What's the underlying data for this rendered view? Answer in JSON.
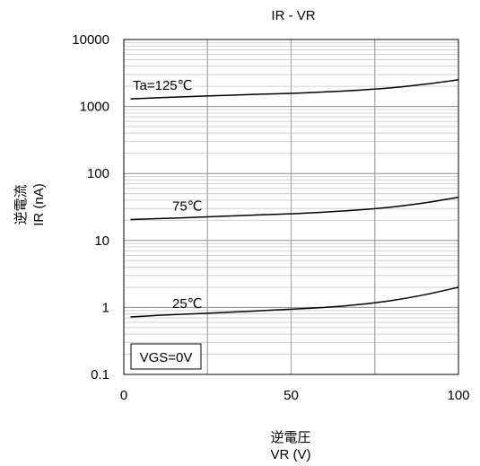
{
  "chart_data": {
    "type": "line",
    "title": "IR - VR",
    "xlabel_line1": "逆電圧",
    "xlabel_line2": "VR (V)",
    "ylabel_line1": "逆電流",
    "ylabel_line2": "IR (nA)",
    "x_scale": "linear",
    "y_scale": "log",
    "xlim": [
      0,
      100
    ],
    "ylim": [
      0.1,
      10000
    ],
    "x_ticks": [
      0,
      50,
      100
    ],
    "x_tick_labels": [
      "0",
      "50",
      "100"
    ],
    "y_ticks": [
      0.1,
      1,
      10,
      100,
      1000,
      10000
    ],
    "y_tick_labels": [
      "0.1",
      "1",
      "10",
      "100",
      "1000",
      "10000"
    ],
    "grid": true,
    "legend_box": "VGS=0V",
    "series": [
      {
        "name": "Ta=125℃",
        "color": "#000000",
        "x": [
          2,
          10,
          20,
          30,
          40,
          50,
          60,
          70,
          80,
          90,
          100
        ],
        "y": [
          1300,
          1350,
          1410,
          1460,
          1520,
          1570,
          1650,
          1750,
          1900,
          2150,
          2500
        ]
      },
      {
        "name": "75℃",
        "color": "#000000",
        "x": [
          2,
          10,
          20,
          30,
          40,
          50,
          60,
          70,
          80,
          90,
          100
        ],
        "y": [
          20.5,
          21.2,
          22,
          23,
          24,
          25,
          26.5,
          28.5,
          31.5,
          36.5,
          44
        ]
      },
      {
        "name": "25℃",
        "color": "#000000",
        "x": [
          2,
          10,
          20,
          30,
          40,
          50,
          60,
          70,
          80,
          90,
          100
        ],
        "y": [
          0.72,
          0.76,
          0.8,
          0.84,
          0.89,
          0.94,
          1.0,
          1.1,
          1.27,
          1.55,
          2.0
        ]
      }
    ]
  }
}
